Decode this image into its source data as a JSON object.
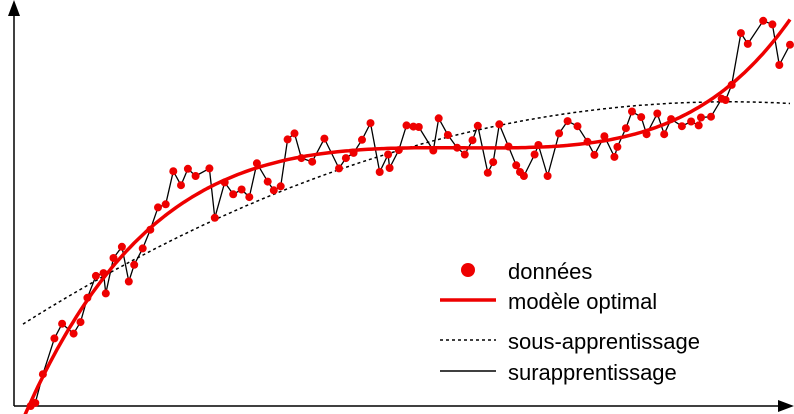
{
  "chart_data": {
    "type": "scatter",
    "title": "",
    "xlabel": "",
    "ylabel": "",
    "xlim": [
      0,
      100
    ],
    "ylim": [
      0,
      100
    ],
    "grid": false,
    "axis_arrows": true,
    "legend_position": "bottom-right",
    "legend": [
      {
        "label": "données",
        "kind": "marker",
        "color": "#ee0000"
      },
      {
        "label": "modèle optimal",
        "kind": "line",
        "style": "solid-thick",
        "color": "#ee0000"
      },
      {
        "label": "sous-apprentissage",
        "kind": "line",
        "style": "dotted",
        "color": "#000000"
      },
      {
        "label": "surapprentissage",
        "kind": "line",
        "style": "solid-thin",
        "color": "#000000"
      }
    ],
    "points": [
      [
        1,
        2
      ],
      [
        1.6,
        2.8
      ],
      [
        2.6,
        10
      ],
      [
        4.1,
        19
      ],
      [
        5.1,
        22.7
      ],
      [
        6.6,
        20.2
      ],
      [
        7.5,
        23.1
      ],
      [
        8.4,
        29.2
      ],
      [
        9.5,
        34.7
      ],
      [
        10.5,
        35.4
      ],
      [
        10.8,
        30.3
      ],
      [
        11.8,
        39.2
      ],
      [
        12.9,
        42
      ],
      [
        13.8,
        33.3
      ],
      [
        14.5,
        37.5
      ],
      [
        15.6,
        41.6
      ],
      [
        16.6,
        46.3
      ],
      [
        17.6,
        51.9
      ],
      [
        18.6,
        52.7
      ],
      [
        19.6,
        61
      ],
      [
        20.6,
        57.5
      ],
      [
        21.5,
        61.6
      ],
      [
        22.5,
        59.8
      ],
      [
        24.3,
        61.7
      ],
      [
        25,
        49.3
      ],
      [
        26.3,
        58.2
      ],
      [
        27.4,
        55.2
      ],
      [
        28.5,
        56.4
      ],
      [
        29.5,
        54.5
      ],
      [
        30.5,
        63
      ],
      [
        31.9,
        58.4
      ],
      [
        32.7,
        56.2
      ],
      [
        33.6,
        57.2
      ],
      [
        34.5,
        69
      ],
      [
        35.4,
        70.5
      ],
      [
        36.3,
        64.3
      ],
      [
        37.7,
        63.4
      ],
      [
        39.3,
        69.2
      ],
      [
        41.2,
        61.7
      ],
      [
        42.1,
        64.3
      ],
      [
        43.1,
        65.6
      ],
      [
        44.2,
        68.9
      ],
      [
        45.3,
        73.1
      ],
      [
        46.5,
        60.8
      ],
      [
        47.6,
        65.2
      ],
      [
        47.8,
        61.8
      ],
      [
        49,
        66.3
      ],
      [
        50,
        72.5
      ],
      [
        50.9,
        72.2
      ],
      [
        51.6,
        72.1
      ],
      [
        53.5,
        66.2
      ],
      [
        54.2,
        74.3
      ],
      [
        55.4,
        70.1
      ],
      [
        56.6,
        66.9
      ],
      [
        57.6,
        65.2
      ],
      [
        58.6,
        68.8
      ],
      [
        59.3,
        72.4
      ],
      [
        60.6,
        60.6
      ],
      [
        61.3,
        63.3
      ],
      [
        62.1,
        72.8
      ],
      [
        63.3,
        67.2
      ],
      [
        64.3,
        62.5
      ],
      [
        64.8,
        60.8
      ],
      [
        65.3,
        59.8
      ],
      [
        66.7,
        65.2
      ],
      [
        67.2,
        67.6
      ],
      [
        68.4,
        59.8
      ],
      [
        69.9,
        70.5
      ],
      [
        71,
        73.6
      ],
      [
        72.3,
        72.3
      ],
      [
        73.6,
        68.4
      ],
      [
        74.5,
        65.1
      ],
      [
        75.8,
        69.8
      ],
      [
        77.1,
        64.6
      ],
      [
        77.5,
        67.1
      ],
      [
        78.6,
        71.8
      ],
      [
        79.4,
        76
      ],
      [
        80.6,
        74.6
      ],
      [
        81.3,
        70.3
      ],
      [
        82.7,
        75.5
      ],
      [
        83.6,
        70.3
      ],
      [
        84.5,
        74.1
      ],
      [
        85.9,
        72.3
      ],
      [
        87.1,
        73.5
      ],
      [
        88.1,
        72.5
      ],
      [
        88.4,
        74.5
      ],
      [
        89.7,
        74.7
      ],
      [
        91.1,
        79.2
      ],
      [
        91.6,
        78.9
      ],
      [
        92.4,
        82.7
      ],
      [
        93.6,
        95.7
      ],
      [
        94.5,
        93
      ],
      [
        96.5,
        98.8
      ],
      [
        97.7,
        97.9
      ],
      [
        98.6,
        87.7
      ],
      [
        100,
        92.8
      ]
    ]
  }
}
